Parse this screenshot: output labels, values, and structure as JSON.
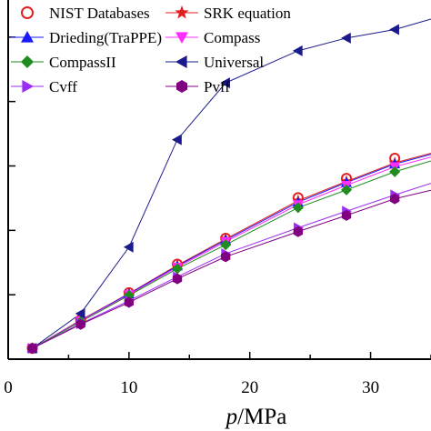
{
  "chart_data": {
    "type": "line",
    "xlabel_italic": "p",
    "xlabel_rest": "/MPa",
    "xlim": [
      0,
      35
    ],
    "ylim": [
      0,
      1
    ],
    "xticks": [
      0,
      10,
      20,
      30
    ],
    "yticks": [
      0,
      0.1667,
      0.3333,
      0.5,
      0.6667,
      0.8333,
      1
    ],
    "legend_position": "top-left",
    "legend_layout": [
      [
        "NIST Databases",
        "SRK equation"
      ],
      [
        "Drieding(TraPPE)",
        "Compass"
      ],
      [
        "CompassII",
        "Universal"
      ],
      [
        "Cvff",
        "Pvff"
      ]
    ],
    "series": [
      {
        "name": "NIST Databases",
        "color": "#e02020",
        "marker": "circle-open",
        "line": false,
        "x": [
          2,
          6,
          10,
          14,
          18,
          24,
          28,
          32
        ],
        "y": [
          0.028,
          0.102,
          0.172,
          0.246,
          0.313,
          0.418,
          0.468,
          0.52
        ]
      },
      {
        "name": "SRK equation",
        "color": "#e02020",
        "marker": "star",
        "line": true,
        "x": [
          2,
          6,
          10,
          14,
          18,
          24,
          28,
          32,
          35
        ],
        "y": [
          0.028,
          0.101,
          0.17,
          0.243,
          0.311,
          0.41,
          0.46,
          0.508,
          0.533
        ]
      },
      {
        "name": "Drieding(TraPPE)",
        "color": "#1a1aff",
        "marker": "triangle-up",
        "line": true,
        "x": [
          2,
          6,
          10,
          14,
          18,
          24,
          28,
          32,
          35
        ],
        "y": [
          0.028,
          0.1,
          0.169,
          0.241,
          0.308,
          0.406,
          0.457,
          0.505,
          0.53
        ]
      },
      {
        "name": "Compass",
        "color": "#ff2cff",
        "marker": "triangle-down",
        "line": true,
        "x": [
          2,
          6,
          10,
          14,
          18,
          24,
          28,
          32,
          35
        ],
        "y": [
          0.028,
          0.099,
          0.167,
          0.238,
          0.304,
          0.4,
          0.45,
          0.498,
          0.523
        ]
      },
      {
        "name": "CompassII",
        "color": "#1e8c1e",
        "marker": "diamond",
        "line": true,
        "x": [
          2,
          6,
          10,
          14,
          18,
          24,
          28,
          32,
          35
        ],
        "y": [
          0.028,
          0.097,
          0.165,
          0.234,
          0.296,
          0.392,
          0.438,
          0.485,
          0.513
        ]
      },
      {
        "name": "Universal",
        "color": "#1a1a8c",
        "marker": "triangle-left",
        "line": true,
        "x": [
          2,
          6,
          10,
          14,
          18,
          24,
          28,
          32,
          35
        ],
        "y": [
          0.028,
          0.118,
          0.29,
          0.568,
          0.715,
          0.798,
          0.831,
          0.853,
          0.88
        ]
      },
      {
        "name": "Cvff",
        "color": "#9a2cf5",
        "marker": "triangle-right",
        "line": true,
        "x": [
          2,
          6,
          10,
          14,
          18,
          24,
          28,
          32,
          35
        ],
        "y": [
          0.028,
          0.092,
          0.151,
          0.213,
          0.273,
          0.34,
          0.383,
          0.425,
          0.455
        ]
      },
      {
        "name": "Pvff",
        "color": "#800080",
        "marker": "hexagon",
        "line": true,
        "x": [
          2,
          6,
          10,
          14,
          18,
          24,
          28,
          32,
          35
        ],
        "y": [
          0.028,
          0.09,
          0.147,
          0.208,
          0.265,
          0.33,
          0.372,
          0.415,
          0.437
        ]
      }
    ]
  }
}
